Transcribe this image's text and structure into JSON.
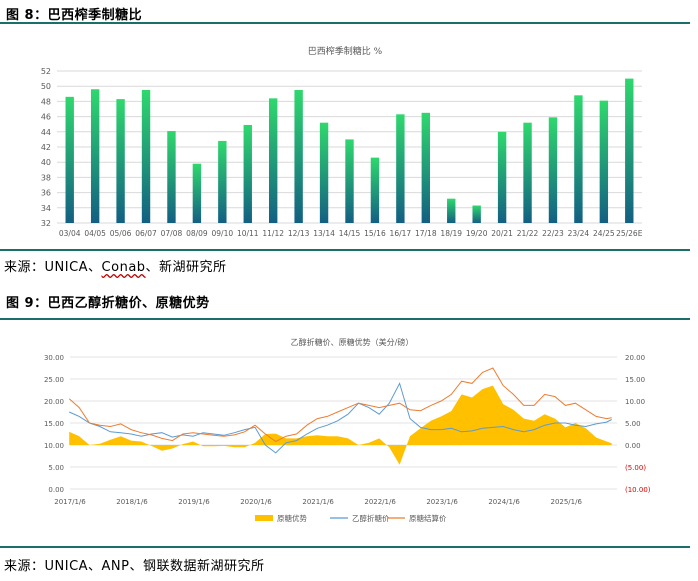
{
  "figure8": {
    "label": "图 8：巴西榨季制糖比",
    "source_prefix": "来源：UNICA、",
    "source_conab": "Conab",
    "source_suffix": "、新湖研究所",
    "chart_data": {
      "type": "bar",
      "title": "巴西榨季制糖比 %",
      "xlabel": "",
      "ylabel": "",
      "ylim": [
        32,
        52
      ],
      "yticks": [
        "32",
        "34",
        "36",
        "38",
        "40",
        "42",
        "44",
        "46",
        "48",
        "50",
        "52"
      ],
      "grid": true,
      "gradient_top": "#2fd86e",
      "gradient_bottom": "#135f82",
      "categories": [
        "03/04",
        "04/05",
        "05/06",
        "06/07",
        "07/08",
        "08/09",
        "09/10",
        "10/11",
        "11/12",
        "12/13",
        "13/14",
        "14/15",
        "15/16",
        "16/17",
        "17/18",
        "18/19",
        "19/20",
        "20/21",
        "21/22",
        "22/23",
        "23/24",
        "24/25",
        "25/26E"
      ],
      "values": [
        48.6,
        49.6,
        48.3,
        49.5,
        44.1,
        39.8,
        42.8,
        44.9,
        48.4,
        49.5,
        45.2,
        43.0,
        40.6,
        46.3,
        46.5,
        35.2,
        34.3,
        44.0,
        45.2,
        45.9,
        48.8,
        48.1,
        51.0
      ]
    }
  },
  "figure9": {
    "label": "图 9：巴西乙醇折糖价、原糖优势",
    "source": "来源：UNICA、ANP、钢联数据新湖研究所",
    "chart_data": {
      "type": "line",
      "title": "乙醇折糖价、原糖优势（美分/磅）",
      "x_tick_labels": [
        "2017/1/6",
        "2018/1/6",
        "2019/1/6",
        "2020/1/6",
        "2021/1/6",
        "2022/1/6",
        "2023/1/6",
        "2024/1/6",
        "2025/1/6"
      ],
      "x_start": "2017-01-06",
      "left_axis": {
        "ylim": [
          0,
          30
        ],
        "ticks": [
          "0.00",
          "5.00",
          "10.00",
          "15.00",
          "20.00",
          "25.00",
          "30.00"
        ]
      },
      "right_axis": {
        "ylim": [
          -10,
          20
        ],
        "ticks": [
          "(10.00)",
          "(5.00)",
          "0.00",
          "5.00",
          "10.00",
          "15.00",
          "20.00"
        ],
        "negative_color": "#e00000"
      },
      "colors": {
        "premium": "#ffc000",
        "ethanol": "#5b9bd5",
        "raw": "#ed7d31"
      },
      "legend": [
        "原糖优势",
        "乙醇折糖价",
        "原糖结算价"
      ],
      "series_monthly": {
        "dates": [
          "2017-01",
          "2017-03",
          "2017-05",
          "2017-07",
          "2017-09",
          "2017-11",
          "2018-01",
          "2018-03",
          "2018-05",
          "2018-07",
          "2018-09",
          "2018-11",
          "2019-01",
          "2019-03",
          "2019-05",
          "2019-07",
          "2019-09",
          "2019-11",
          "2020-01",
          "2020-03",
          "2020-05",
          "2020-07",
          "2020-09",
          "2020-11",
          "2021-01",
          "2021-03",
          "2021-05",
          "2021-07",
          "2021-09",
          "2021-11",
          "2022-01",
          "2022-03",
          "2022-05",
          "2022-07",
          "2022-09",
          "2022-11",
          "2023-01",
          "2023-03",
          "2023-05",
          "2023-07",
          "2023-09",
          "2023-11",
          "2024-01",
          "2024-03",
          "2024-05",
          "2024-07",
          "2024-09",
          "2024-11",
          "2025-01",
          "2025-03",
          "2025-05",
          "2025-07",
          "2025-09",
          "2025-10"
        ],
        "ethanol": [
          17.5,
          16.5,
          15.0,
          14.2,
          13.0,
          12.8,
          12.5,
          12.0,
          12.5,
          12.8,
          11.8,
          12.3,
          12.0,
          12.8,
          12.5,
          12.2,
          12.8,
          13.5,
          14.0,
          10.0,
          8.2,
          10.5,
          11.0,
          12.5,
          13.8,
          14.5,
          15.5,
          17.0,
          19.5,
          18.5,
          17.0,
          19.5,
          24.0,
          16.0,
          14.0,
          13.5,
          13.5,
          13.8,
          13.0,
          13.2,
          13.8,
          14.0,
          14.2,
          13.5,
          13.0,
          13.5,
          14.5,
          15.0,
          15.0,
          14.5,
          14.2,
          14.8,
          15.2,
          15.8
        ],
        "raw_price": [
          20.5,
          18.5,
          15.0,
          14.5,
          14.2,
          14.8,
          13.5,
          12.8,
          12.3,
          11.5,
          11.0,
          12.5,
          12.8,
          12.5,
          12.2,
          12.0,
          12.3,
          13.0,
          14.5,
          12.5,
          10.8,
          12.0,
          12.5,
          14.5,
          16.0,
          16.5,
          17.5,
          18.5,
          19.5,
          19.0,
          18.5,
          19.0,
          19.5,
          18.0,
          17.8,
          19.0,
          20.0,
          21.5,
          24.5,
          24.0,
          26.5,
          27.5,
          23.5,
          21.5,
          19.0,
          19.0,
          21.5,
          21.0,
          19.0,
          19.5,
          18.0,
          16.5,
          16.0,
          16.2
        ],
        "premium": [
          3.0,
          2.0,
          0.0,
          0.3,
          1.2,
          2.0,
          1.0,
          0.8,
          -0.2,
          -1.3,
          -0.8,
          0.2,
          0.8,
          -0.3,
          -0.3,
          -0.2,
          -0.5,
          -0.5,
          0.5,
          2.5,
          2.6,
          1.5,
          1.5,
          2.0,
          2.2,
          2.0,
          2.0,
          1.5,
          0.0,
          0.5,
          1.5,
          -0.5,
          -4.5,
          2.0,
          3.8,
          5.5,
          6.5,
          7.7,
          11.5,
          10.8,
          12.7,
          13.5,
          9.3,
          8.0,
          6.0,
          5.5,
          7.0,
          6.0,
          4.0,
          5.0,
          3.8,
          1.7,
          0.8,
          0.4
        ]
      }
    }
  }
}
